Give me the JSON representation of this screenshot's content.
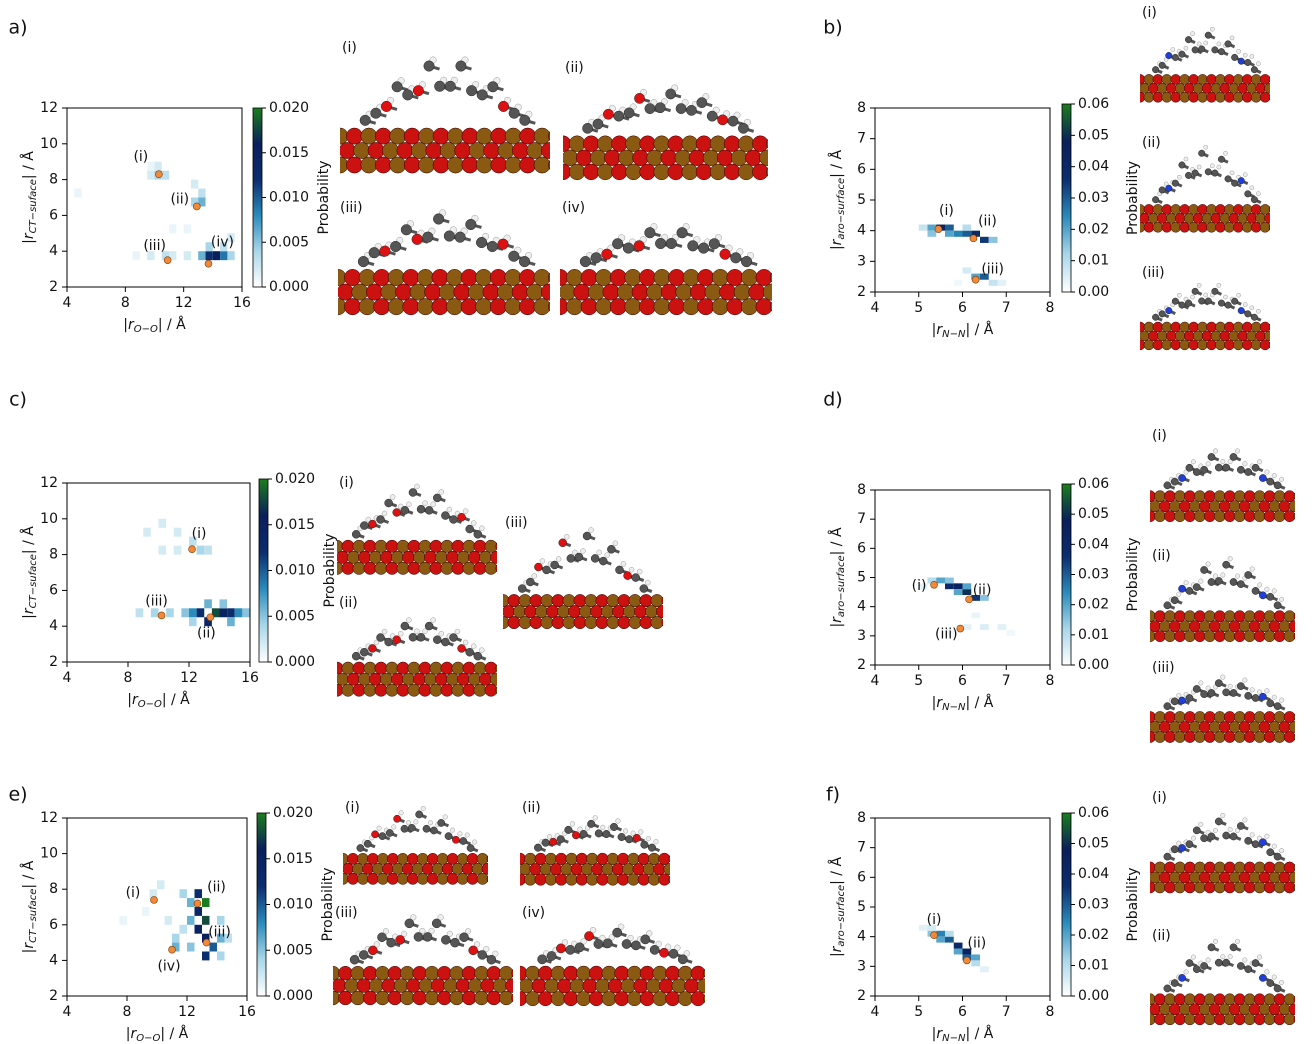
{
  "chart_data": [
    {
      "type": "heatmap",
      "panel": "a)",
      "xlabel": [
        "|r",
        "O−O",
        "| / Å"
      ],
      "ylabel": [
        "|r",
        "CT−suface",
        "| / Å"
      ],
      "xlim": [
        4,
        16
      ],
      "ylim": [
        2,
        12
      ],
      "xticks": [
        4,
        8,
        12,
        16
      ],
      "yticks": [
        2,
        4,
        6,
        8,
        10,
        12
      ],
      "colormap": [
        "#ffffff",
        "#a9d6e9",
        "#2b8bbb",
        "#0b2d6e",
        "#0a1f5c",
        "#1c7d1e"
      ],
      "cells": {
        "x": [
          4.5,
          9.5,
          10,
          10.5,
          10,
          9.5,
          12.5,
          13,
          13,
          12.5,
          8.5,
          9.5,
          10.5,
          11,
          12,
          13,
          13.5,
          14,
          14.5,
          15,
          13.5,
          14.5,
          15,
          11,
          12
        ],
        "y": [
          7,
          8,
          8,
          8,
          8.5,
          8.5,
          6.5,
          6.5,
          7,
          7.5,
          3.5,
          3.5,
          3.5,
          3.5,
          3.5,
          3.5,
          3.5,
          3.5,
          3.5,
          3.5,
          4,
          4,
          4.5,
          5,
          5
        ],
        "values": [
          0.001,
          0.002,
          0.004,
          0.003,
          0.002,
          0.001,
          0.004,
          0.006,
          0.003,
          0.002,
          0.001,
          0.002,
          0.003,
          0.002,
          0.002,
          0.006,
          0.012,
          0.016,
          0.009,
          0.004,
          0.004,
          0.003,
          0.002,
          0.001,
          0.001
        ]
      },
      "points": {
        "color": "#f08a3a",
        "labels": [
          "(i)",
          "(ii)",
          "(iii)",
          "(iv)"
        ],
        "x": [
          10.3,
          12.9,
          10.9,
          13.7
        ],
        "y": [
          8.3,
          6.5,
          3.5,
          3.3
        ]
      },
      "colorbar": {
        "label": "Probability",
        "lim": [
          0,
          0.02
        ],
        "ticks": [
          {
            "value": 0,
            "label": "0.000"
          },
          {
            "value": 0.005,
            "label": "0.005"
          },
          {
            "value": 0.01,
            "label": "0.010"
          },
          {
            "value": 0.015,
            "label": "0.015"
          },
          {
            "value": 0.02,
            "label": "0.020"
          }
        ]
      },
      "snapshots": [
        "(i)",
        "(ii)",
        "(iii)",
        "(iv)"
      ]
    },
    {
      "type": "heatmap",
      "panel": "b)",
      "xlabel": [
        "|r",
        "N−N",
        "| / Å"
      ],
      "ylabel": [
        "|r",
        "aro−surface",
        "| / Å"
      ],
      "xlim": [
        4,
        8
      ],
      "ylim": [
        2,
        8
      ],
      "xticks": [
        4,
        5,
        6,
        7,
        8
      ],
      "yticks": [
        2,
        3,
        4,
        5,
        6,
        7,
        8
      ],
      "colormap": [
        "#ffffff",
        "#a9d6e9",
        "#2b8bbb",
        "#0b2d6e",
        "#0a1f5c",
        "#1c7d1e"
      ],
      "cells": {
        "x": [
          5.0,
          5.2,
          5.4,
          5.6,
          5.8,
          6.0,
          6.2,
          6.4,
          6.6,
          5.2,
          5.6,
          6.0,
          6.2,
          6.4,
          6.6,
          6.8,
          5.8,
          6.0
        ],
        "y": [
          4.0,
          4.0,
          4.0,
          4.0,
          3.8,
          3.8,
          3.8,
          3.6,
          3.6,
          3.8,
          3.8,
          4.0,
          2.4,
          2.4,
          2.2,
          2.2,
          2.2,
          2.6
        ],
        "values": [
          0.008,
          0.02,
          0.045,
          0.03,
          0.025,
          0.03,
          0.04,
          0.035,
          0.015,
          0.015,
          0.02,
          0.01,
          0.02,
          0.03,
          0.008,
          0.004,
          0.002,
          0.006
        ]
      },
      "points": {
        "color": "#f08a3a",
        "labels": [
          "(i)",
          "(ii)",
          "(iii)"
        ],
        "x": [
          5.45,
          6.25,
          6.3
        ],
        "y": [
          4.05,
          3.75,
          2.4
        ]
      },
      "colorbar": {
        "label": "Probability",
        "lim": [
          0,
          0.06
        ],
        "ticks": [
          {
            "value": 0,
            "label": "0.00"
          },
          {
            "value": 0.01,
            "label": "0.01"
          },
          {
            "value": 0.02,
            "label": "0.02"
          },
          {
            "value": 0.03,
            "label": "0.03"
          },
          {
            "value": 0.04,
            "label": "0.04"
          },
          {
            "value": 0.05,
            "label": "0.05"
          },
          {
            "value": 0.06,
            "label": "0.06"
          }
        ]
      },
      "snapshots": [
        "(i)",
        "(ii)",
        "(iii)"
      ]
    },
    {
      "type": "heatmap",
      "panel": "c)",
      "xlabel": [
        "|r",
        "O−O",
        "| / Å"
      ],
      "ylabel": [
        "|r",
        "CT−suface",
        "| / Å"
      ],
      "xlim": [
        4,
        16
      ],
      "ylim": [
        2,
        12
      ],
      "xticks": [
        4,
        8,
        12,
        16
      ],
      "yticks": [
        2,
        4,
        6,
        8,
        10,
        12
      ],
      "colormap": [
        "#ffffff",
        "#a9d6e9",
        "#2b8bbb",
        "#0b2d6e",
        "#0a1f5c",
        "#1c7d1e"
      ],
      "cells": {
        "x": [
          9,
          10,
          11,
          12,
          12.5,
          13,
          10,
          11,
          8.5,
          9.5,
          10.5,
          11.5,
          12,
          12.5,
          13,
          13.5,
          14,
          14.5,
          15,
          15.5,
          13,
          14,
          12,
          14.5
        ],
        "y": [
          9,
          9.5,
          9,
          8.5,
          8,
          8,
          8,
          8,
          4.5,
          4.5,
          4.5,
          4.5,
          4.5,
          4.5,
          4,
          4.5,
          4.5,
          4.5,
          4.5,
          4.5,
          5,
          5,
          4,
          4
        ],
        "values": [
          0.002,
          0.002,
          0.002,
          0.003,
          0.004,
          0.003,
          0.002,
          0.002,
          0.003,
          0.004,
          0.004,
          0.005,
          0.008,
          0.012,
          0.014,
          0.018,
          0.015,
          0.012,
          0.008,
          0.005,
          0.006,
          0.005,
          0.004,
          0.006
        ]
      },
      "points": {
        "color": "#f08a3a",
        "labels": [
          "(i)",
          "(ii)",
          "(iii)"
        ],
        "x": [
          12.2,
          13.4,
          10.2
        ],
        "y": [
          8.3,
          4.5,
          4.6
        ]
      },
      "colorbar": {
        "label": "Probability",
        "lim": [
          0,
          0.02
        ],
        "ticks": [
          {
            "value": 0,
            "label": "0.000"
          },
          {
            "value": 0.005,
            "label": "0.005"
          },
          {
            "value": 0.01,
            "label": "0.010"
          },
          {
            "value": 0.015,
            "label": "0.015"
          },
          {
            "value": 0.02,
            "label": "0.020"
          }
        ]
      },
      "snapshots": [
        "(i)",
        "(ii)",
        "(iii)"
      ]
    },
    {
      "type": "heatmap",
      "panel": "d)",
      "xlabel": [
        "|r",
        "N−N",
        "| / Å"
      ],
      "ylabel": [
        "|r",
        "aro−surface",
        "| / Å"
      ],
      "xlim": [
        4,
        8
      ],
      "ylim": [
        2,
        8
      ],
      "xticks": [
        4,
        5,
        6,
        7,
        8
      ],
      "yticks": [
        2,
        3,
        4,
        5,
        6,
        7,
        8
      ],
      "colormap": [
        "#ffffff",
        "#a9d6e9",
        "#2b8bbb",
        "#0b2d6e",
        "#0a1f5c",
        "#1c7d1e"
      ],
      "cells": {
        "x": [
          5.2,
          5.4,
          5.6,
          5.8,
          6.0,
          6.2,
          6.4,
          5.6,
          6.0,
          5.8,
          5.0,
          6.0,
          6.4,
          6.8,
          7.0,
          5.6,
          6.2
        ],
        "y": [
          4.8,
          4.8,
          4.6,
          4.6,
          4.4,
          4.2,
          4.2,
          4.8,
          4.6,
          4.4,
          4.6,
          3.2,
          3.2,
          3.2,
          3.0,
          3.0,
          3.6
        ],
        "values": [
          0.01,
          0.02,
          0.04,
          0.045,
          0.05,
          0.035,
          0.015,
          0.015,
          0.02,
          0.02,
          0.004,
          0.004,
          0.005,
          0.004,
          0.002,
          0.002,
          0.003
        ]
      },
      "points": {
        "color": "#f08a3a",
        "labels": [
          "(i)",
          "(ii)",
          "(iii)"
        ],
        "x": [
          5.35,
          6.15,
          5.95
        ],
        "y": [
          4.75,
          4.25,
          3.25
        ]
      },
      "colorbar": {
        "label": "Probability",
        "lim": [
          0,
          0.06
        ],
        "ticks": [
          {
            "value": 0,
            "label": "0.00"
          },
          {
            "value": 0.01,
            "label": "0.01"
          },
          {
            "value": 0.02,
            "label": "0.02"
          },
          {
            "value": 0.03,
            "label": "0.03"
          },
          {
            "value": 0.04,
            "label": "0.04"
          },
          {
            "value": 0.05,
            "label": "0.05"
          },
          {
            "value": 0.06,
            "label": "0.06"
          }
        ]
      },
      "snapshots": [
        "(i)",
        "(ii)",
        "(iii)"
      ]
    },
    {
      "type": "heatmap",
      "panel": "e)",
      "xlabel": [
        "|r",
        "O−O",
        "| / Å"
      ],
      "ylabel": [
        "|r",
        "CT−suface",
        "| / Å"
      ],
      "xlim": [
        4,
        16
      ],
      "ylim": [
        2,
        12
      ],
      "xticks": [
        4,
        8,
        12,
        16
      ],
      "yticks": [
        2,
        4,
        6,
        8,
        10,
        12
      ],
      "colormap": [
        "#ffffff",
        "#a9d6e9",
        "#2b8bbb",
        "#0b2d6e",
        "#0a1f5c",
        "#1c7d1e"
      ],
      "cells": {
        "x": [
          9.5,
          10,
          9,
          10.5,
          11,
          11,
          11.5,
          12,
          12,
          12.5,
          12.5,
          12.5,
          13,
          13,
          13,
          13,
          13.5,
          14,
          14,
          14.5,
          14,
          12,
          11.5,
          7.5
        ],
        "y": [
          7.5,
          8,
          6.5,
          6,
          5,
          4.5,
          7.5,
          7,
          6,
          7.5,
          6.5,
          5.5,
          7,
          6,
          5,
          4,
          4.5,
          5,
          6,
          5,
          4,
          4.5,
          5.5,
          6
        ],
        "values": [
          0.002,
          0.002,
          0.001,
          0.002,
          0.004,
          0.006,
          0.004,
          0.006,
          0.006,
          0.012,
          0.014,
          0.015,
          0.02,
          0.018,
          0.016,
          0.012,
          0.01,
          0.006,
          0.004,
          0.003,
          0.004,
          0.005,
          0.003,
          0.001
        ]
      },
      "points": {
        "color": "#f08a3a",
        "labels": [
          "(i)",
          "(ii)",
          "(iii)",
          "(iv)"
        ],
        "x": [
          9.8,
          12.7,
          13.3,
          11
        ],
        "y": [
          7.4,
          7.2,
          5,
          4.6
        ]
      },
      "colorbar": {
        "label": "Probability",
        "lim": [
          0,
          0.02
        ],
        "ticks": [
          {
            "value": 0,
            "label": "0.000"
          },
          {
            "value": 0.005,
            "label": "0.005"
          },
          {
            "value": 0.01,
            "label": "0.010"
          },
          {
            "value": 0.015,
            "label": "0.015"
          },
          {
            "value": 0.02,
            "label": "0.020"
          }
        ]
      },
      "snapshots": [
        "(i)",
        "(ii)",
        "(iii)",
        "(iv)"
      ]
    },
    {
      "type": "heatmap",
      "panel": "f)",
      "xlabel": [
        "|r",
        "N−N",
        "| / Å"
      ],
      "ylabel": [
        "|r",
        "aro−surface",
        "| / Å"
      ],
      "xlim": [
        4,
        8
      ],
      "ylim": [
        2,
        8
      ],
      "xticks": [
        4,
        5,
        6,
        7,
        8
      ],
      "yticks": [
        2,
        3,
        4,
        5,
        6,
        7,
        8
      ],
      "colormap": [
        "#ffffff",
        "#a9d6e9",
        "#2b8bbb",
        "#0b2d6e",
        "#0a1f5c",
        "#1c7d1e"
      ],
      "cells": {
        "x": [
          5.0,
          5.2,
          5.4,
          5.6,
          5.8,
          6.0,
          6.0,
          6.2,
          6.2,
          5.4,
          5.8,
          5.6,
          6.4,
          5.2
        ],
        "y": [
          4.2,
          4.0,
          4.0,
          3.8,
          3.6,
          3.4,
          3.2,
          3.2,
          3.0,
          3.8,
          3.4,
          4.0,
          2.8,
          4.2
        ],
        "values": [
          0.004,
          0.015,
          0.025,
          0.03,
          0.04,
          0.045,
          0.03,
          0.02,
          0.01,
          0.02,
          0.02,
          0.01,
          0.004,
          0.006
        ]
      },
      "points": {
        "color": "#f08a3a",
        "labels": [
          "(i)",
          "(ii)"
        ],
        "x": [
          5.35,
          6.1
        ],
        "y": [
          4.05,
          3.2
        ]
      },
      "colorbar": {
        "label": "Probability",
        "lim": [
          0,
          0.06
        ],
        "ticks": [
          {
            "value": 0,
            "label": "0.00"
          },
          {
            "value": 0.01,
            "label": "0.01"
          },
          {
            "value": 0.02,
            "label": "0.02"
          },
          {
            "value": 0.03,
            "label": "0.03"
          },
          {
            "value": 0.04,
            "label": "0.04"
          },
          {
            "value": 0.05,
            "label": "0.05"
          },
          {
            "value": 0.06,
            "label": "0.06"
          }
        ]
      },
      "snapshots": [
        "(i)",
        "(ii)"
      ]
    }
  ]
}
